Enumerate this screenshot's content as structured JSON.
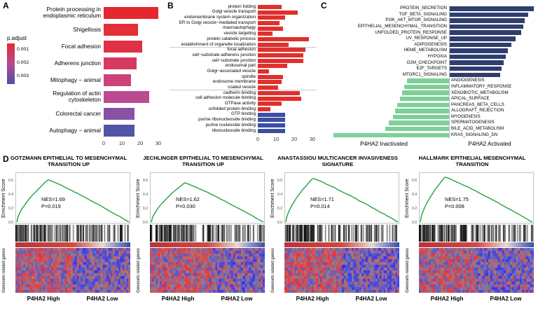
{
  "figure": {
    "panel_labels": {
      "a": "A",
      "b": "B",
      "c": "C",
      "d": "D"
    },
    "background": "#ffffff"
  },
  "chart_data": {
    "panel_a": {
      "type": "bar",
      "orientation": "horizontal",
      "x_ticks": [
        "0",
        "10",
        "20",
        "30"
      ],
      "x_max": 33,
      "legend": {
        "title": "p.adjust",
        "ticks": [
          "0.001",
          "0.002",
          "0.003"
        ],
        "gradient_top": "#e8282e",
        "gradient_mid": "#b84790",
        "gradient_bottom": "#4a52a3"
      },
      "bars": [
        {
          "label": "Protein processing in endoplasmic reticulum",
          "value": 30,
          "color": "#e5282e"
        },
        {
          "label": "Shigellosis",
          "value": 19,
          "color": "#e42e38"
        },
        {
          "label": "Focal adhesion",
          "value": 21,
          "color": "#e03044"
        },
        {
          "label": "Adherens junction",
          "value": 18,
          "color": "#d73a60"
        },
        {
          "label": "Mitophagy − animal",
          "value": 15,
          "color": "#cc4378"
        },
        {
          "label": "Regulation of actin cytoskeleton",
          "value": 25,
          "color": "#bb4a93"
        },
        {
          "label": "Colorectal cancer",
          "value": 17,
          "color": "#8851a4"
        },
        {
          "label": "Autophagy − animal",
          "value": 17,
          "color": "#5254a6"
        }
      ]
    },
    "panel_b": {
      "type": "bar",
      "orientation": "horizontal",
      "x_ticks": [
        "0",
        "10",
        "20",
        "30"
      ],
      "x_max": 31,
      "group_breaks": [
        8,
        16
      ],
      "bars": [
        {
          "label": "protein folding",
          "value": 13,
          "color": "#e0302e"
        },
        {
          "label": "Golgi vesicle transport",
          "value": 22,
          "color": "#e0302e"
        },
        {
          "label": "endomembrane system organization",
          "value": 15,
          "color": "#e0302e"
        },
        {
          "label": "ER to Golgi vesicle−mediated transport",
          "value": 12,
          "color": "#e0302e"
        },
        {
          "label": "macroautophagy",
          "value": 14,
          "color": "#e0302e"
        },
        {
          "label": "vesicle targeting",
          "value": 8,
          "color": "#e0302e"
        },
        {
          "label": "protein catabolic process",
          "value": 28,
          "color": "#e0302e"
        },
        {
          "label": "establishment of organelle localization",
          "value": 17,
          "color": "#e0302e"
        },
        {
          "label": "focal adhesion",
          "value": 26,
          "color": "#e0302e"
        },
        {
          "label": "cell−substrate adherens junction",
          "value": 25,
          "color": "#e0302e"
        },
        {
          "label": "cell−substrate junction",
          "value": 25,
          "color": "#e0302e"
        },
        {
          "label": "endosomal part",
          "value": 16,
          "color": "#e0302e"
        },
        {
          "label": "Golgi−associated vesicle",
          "value": 6,
          "color": "#e0302e"
        },
        {
          "label": "spindle",
          "value": 14,
          "color": "#e0302e"
        },
        {
          "label": "endosome membrane",
          "value": 13,
          "color": "#e0302e"
        },
        {
          "label": "coated vesicle",
          "value": 11,
          "color": "#e0302e"
        },
        {
          "label": "cadherin binding",
          "value": 23,
          "color": "#e0302e"
        },
        {
          "label": "cell adhesion molecule binding",
          "value": 24,
          "color": "#e0302e"
        },
        {
          "label": "GTPase activity",
          "value": 13,
          "color": "#e0302e"
        },
        {
          "label": "unfolded protein binding",
          "value": 7,
          "color": "#e0302e"
        },
        {
          "label": "GTP binding",
          "value": 15,
          "color": "#3c4ea3"
        },
        {
          "label": "purine ribonucleoside binding",
          "value": 15,
          "color": "#3c4ea3"
        },
        {
          "label": "purine nucleoside binding",
          "value": 15,
          "color": "#3c4ea3"
        },
        {
          "label": "ribonucleoside binding",
          "value": 15,
          "color": "#3c4ea3"
        }
      ]
    },
    "panel_c": {
      "type": "diverging-bar",
      "activated_color": "#2f3e6e",
      "inactivated_color": "#7ed098",
      "x_left_label": "P4HA2  Inactivated",
      "x_right_label": "P4HA2  Activated",
      "activated": [
        {
          "label": "PROTEIN_SECRETION",
          "value": 2.2
        },
        {
          "label": "TGF_BETA_SIGNALING",
          "value": 2.05
        },
        {
          "label": "PI3K_AKT_MTOR_SIGNALING",
          "value": 1.97
        },
        {
          "label": "EPITHELIAL_MESENCHYMAL_TRANSITION",
          "value": 1.92
        },
        {
          "label": "UNFOLDED_PROTEIN_RESPONSE",
          "value": 1.87
        },
        {
          "label": "UV_RESPONSE_UP",
          "value": 1.72
        },
        {
          "label": "ADIPOGENESIS",
          "value": 1.62
        },
        {
          "label": "HEME_METABOLISM",
          "value": 1.52
        },
        {
          "label": "HYPOXIA",
          "value": 1.47
        },
        {
          "label": "G2M_CHECKPOINT",
          "value": 1.42
        },
        {
          "label": "E2F_TARGETS",
          "value": 1.37
        },
        {
          "label": "MTORC1_SIGNALING",
          "value": 1.32
        }
      ],
      "inactivated": [
        {
          "label": "ANGIOGENESIS",
          "value": 1.1
        },
        {
          "label": "INFLAMMATORY_RESPONSE",
          "value": 1.16
        },
        {
          "label": "XENOBIOTIC_METABOLISM",
          "value": 1.22
        },
        {
          "label": "APICAL_SURFACE",
          "value": 1.28
        },
        {
          "label": "PANCREAS_BETA_CELLS",
          "value": 1.34
        },
        {
          "label": "ALLOGRAFT_REJECTION",
          "value": 1.4
        },
        {
          "label": "MYOGENESIS",
          "value": 1.46
        },
        {
          "label": "SPERMATOGENESIS",
          "value": 1.56
        },
        {
          "label": "BILE_ACID_METABOLISM",
          "value": 1.66
        },
        {
          "label": "KRAS_SIGNALING_DN",
          "value": 3.0
        }
      ]
    },
    "panel_d": {
      "type": "gsea",
      "y_axis_label": "Enrichment Score",
      "y_ticks": [
        "0.0",
        "0.2",
        "0.4",
        "0.6"
      ],
      "heatmap_label": "Genesets related genes",
      "x_left_label": "P4HA2 High",
      "x_right_label": "P4HA2 Low",
      "curve_color": "#1fa23b",
      "rank_gradient": [
        "#b93338 0%",
        "#cf4a42 50%",
        "#e8d9d2 76%",
        "#8492cc 88%",
        "#394ea0 100%"
      ],
      "plots": [
        {
          "title": "GOTZMANN EPITHELIAL TO MESENCHYMAL TRANSITION UP",
          "nes": "NES=1.69",
          "p": "P=0.019",
          "es_max": 0.62,
          "peak": 0.28,
          "seed": 11,
          "red_bias": 0.3,
          "split": 0.5
        },
        {
          "title": "JECHLINGER EPITHELIAL TO MESENCHYMAL TRANSITION UP",
          "nes": "NES=1.62",
          "p": "P=0.030",
          "es_max": 0.58,
          "peak": 0.3,
          "seed": 22,
          "red_bias": 0.3,
          "split": 0.55
        },
        {
          "title": "ANASTASSIOU MULTICANCER INVASIVENESS SIGNATURE",
          "nes": "NES=1.71",
          "p": "P=0.014",
          "es_max": 0.64,
          "peak": 0.24,
          "seed": 33,
          "red_bias": 0.45,
          "split": 0.5
        },
        {
          "title": "HALLMARK EPITHELIAL MESENCHYMAL TRANSITION",
          "nes": "NES=1.75",
          "p": "P=0.008",
          "es_max": 0.66,
          "peak": 0.22,
          "seed": 44,
          "red_bias": 0.35,
          "split": 0.5
        }
      ]
    }
  }
}
